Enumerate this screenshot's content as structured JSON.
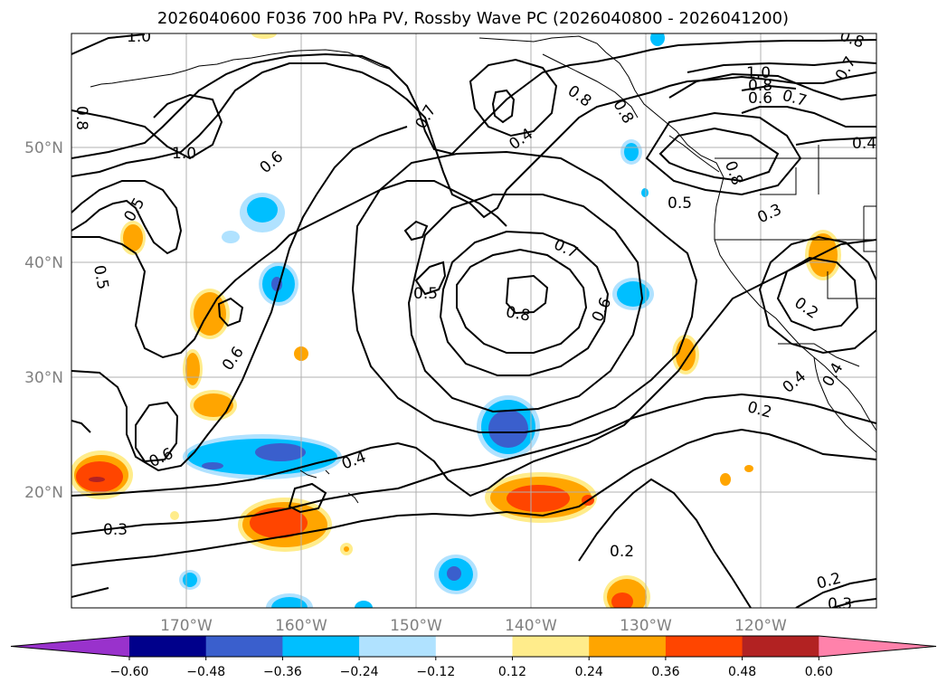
{
  "title": "2026040600 F036 700 hPa PV, Rossby Wave PC (2026040800 - 2026041200)",
  "lon_labels": [
    "170°W",
    "160°W",
    "150°W",
    "140°W",
    "130°W",
    "120°W"
  ],
  "lat_labels": [
    "50°N",
    "40°N",
    "30°N",
    "20°N"
  ],
  "contour_labels": {
    "c1": "1.0",
    "c2": "0.8",
    "c3": "1.0",
    "c4": "0.6",
    "c5": "0.5",
    "c6": "0.5",
    "c7": "0.7",
    "c8": "0.4",
    "c9": "0.8",
    "c10": "1.0",
    "c11": "0.8",
    "c12": "0.6",
    "c13": "0.7",
    "c14": "0.8",
    "c15": "0.7",
    "c16": "0.8",
    "c17": "0.5",
    "c18": "0.3",
    "c19": "0.4",
    "c20": "0.7",
    "c21": "0.5",
    "c22": "0.8",
    "c23": "0.6",
    "c24": "0.6",
    "c25": "0.2",
    "c26": "0.6",
    "c27": "0.4",
    "c28": "0.4",
    "c29": "0.4",
    "c30": "0.2",
    "c31": "0.3",
    "c32": "0.2",
    "c33": "0.2",
    "c34": "0.3",
    "c35": "0.8"
  },
  "colorbar": {
    "ticks": [
      "−0.60",
      "−0.48",
      "−0.36",
      "−0.24",
      "−0.12",
      "0.12",
      "0.24",
      "0.36",
      "0.48",
      "0.60"
    ],
    "colors": [
      "#9932cc",
      "#00008b",
      "#3a5fcd",
      "#00bfff",
      "#b0e2ff",
      "#ffffff",
      "#ffec8b",
      "#ffa500",
      "#ff4500",
      "#b22222",
      "#ff82ab"
    ]
  },
  "map": {
    "variable": "700 hPa PV",
    "shading": "Rossby Wave PC",
    "lon_range_deg": [
      -180,
      -110
    ],
    "lat_range_deg": [
      10,
      60
    ]
  }
}
